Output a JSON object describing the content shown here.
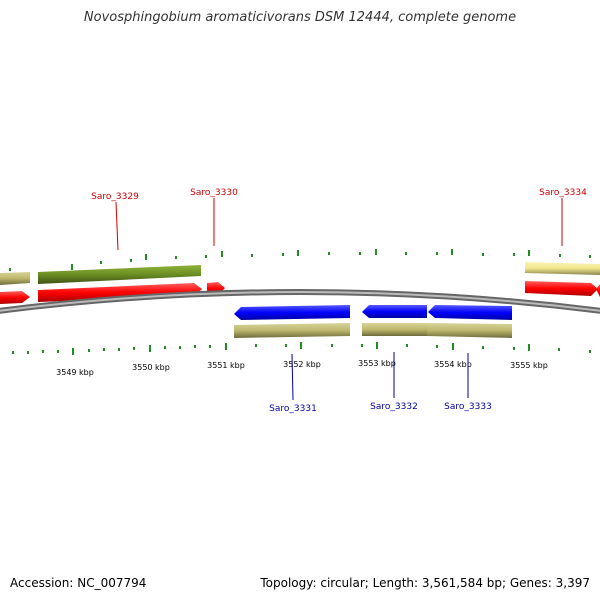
{
  "title": "Novosphingobium aromaticivorans DSM 12444, complete genome",
  "footer": {
    "accession": "Accession: NC_007794",
    "summary": "Topology: circular; Length: 3,561,584 bp; Genes: 3,397"
  },
  "colors": {
    "forward_gene": "#ff0000",
    "reverse_gene": "#0000ff",
    "forward_cds_green": "#6b8e23",
    "forward_cds_pale": "#f0e68c",
    "cds_khaki": "#bdb76b",
    "backbone": "#808080",
    "tick": "#228b22",
    "forward_label": "#cc0000",
    "reverse_label": "#0000aa"
  },
  "axis": {
    "ticks": [
      "3549 kbp",
      "3550 kbp",
      "3551 kbp",
      "3552 kbp",
      "3553 kbp",
      "3554 kbp",
      "3555 kbp"
    ]
  },
  "genes": {
    "forward": [
      {
        "name": "Saro_3329",
        "start_kbp": 3548.4,
        "end_kbp": 3550.7
      },
      {
        "name": "Saro_3330",
        "start_kbp": 3550.8,
        "end_kbp": 3551.0
      },
      {
        "name": "Saro_3334",
        "start_kbp": 3555.2,
        "end_kbp": 3556.2
      }
    ],
    "reverse": [
      {
        "name": "Saro_3331",
        "start_kbp": 3551.1,
        "end_kbp": 3552.6
      },
      {
        "name": "Saro_3332",
        "start_kbp": 3552.7,
        "end_kbp": 3553.5
      },
      {
        "name": "Saro_3333",
        "start_kbp": 3553.5,
        "end_kbp": 3554.6
      }
    ]
  }
}
